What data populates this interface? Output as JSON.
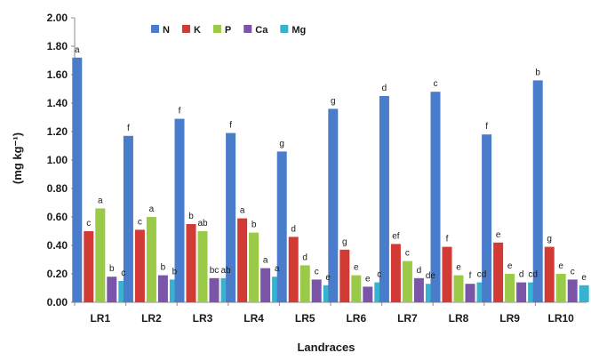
{
  "chart_data": {
    "type": "bar",
    "xlabel": "Landraces",
    "ylabel": "(mg kg⁻¹)",
    "ylim": [
      0,
      2
    ],
    "yticks": [
      "0.00",
      "0.20",
      "0.40",
      "0.60",
      "0.80",
      "1.00",
      "1.20",
      "1.40",
      "1.60",
      "1.80",
      "2.00"
    ],
    "grid": false,
    "legend_position": "top-left",
    "categories": [
      "LR1",
      "LR2",
      "LR3",
      "LR4",
      "LR5",
      "LR6",
      "LR7",
      "LR8",
      "LR9",
      "LR10"
    ],
    "series": [
      {
        "name": "N",
        "color": "#4a7ccc",
        "values": [
          1.72,
          1.17,
          1.29,
          1.19,
          1.06,
          1.36,
          1.45,
          1.48,
          1.18,
          1.56
        ],
        "labels": [
          "a",
          "f",
          "f",
          "f",
          "g",
          "g",
          "d",
          "c",
          "f",
          "b"
        ]
      },
      {
        "name": "K",
        "color": "#d23b35",
        "values": [
          0.5,
          0.51,
          0.55,
          0.59,
          0.46,
          0.37,
          0.41,
          0.39,
          0.42,
          0.39
        ],
        "labels": [
          "c",
          "c",
          "b",
          "a",
          "d",
          "g",
          "ef",
          "f",
          "e",
          "g"
        ]
      },
      {
        "name": "P",
        "color": "#9bc948",
        "values": [
          0.66,
          0.6,
          0.5,
          0.49,
          0.26,
          0.19,
          0.29,
          0.19,
          0.2,
          0.2
        ],
        "labels": [
          "a",
          "a",
          "ab",
          "b",
          "d",
          "e",
          "c",
          "e",
          "e",
          "e"
        ]
      },
      {
        "name": "Ca",
        "color": "#7a55a8",
        "values": [
          0.18,
          0.19,
          0.17,
          0.24,
          0.16,
          0.11,
          0.17,
          0.13,
          0.14,
          0.16
        ],
        "labels": [
          "b",
          "b",
          "bc",
          "a",
          "c",
          "e",
          "d",
          "f",
          "d",
          "c"
        ]
      },
      {
        "name": "Mg",
        "color": "#35b3cf",
        "values": [
          0.15,
          0.16,
          0.17,
          0.18,
          0.12,
          0.14,
          0.13,
          0.14,
          0.14,
          0.12
        ],
        "labels": [
          "c",
          "b",
          "ab",
          "a",
          "e",
          "c",
          "de",
          "cd",
          "cd",
          "e"
        ]
      }
    ]
  }
}
